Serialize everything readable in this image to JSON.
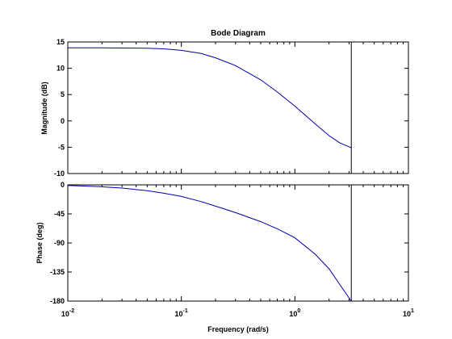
{
  "chart_data": {
    "type": "line",
    "title": "Bode Diagram",
    "xlabel": "Frequency  (rad/s)",
    "x_scale": "log",
    "x_range": [
      0.01,
      10
    ],
    "x_ticks": [
      {
        "base": "10",
        "exp": "-2"
      },
      {
        "base": "10",
        "exp": "-1"
      },
      {
        "base": "10",
        "exp": "0"
      },
      {
        "base": "10",
        "exp": "1"
      }
    ],
    "series_color": "#0000aa",
    "panels": [
      {
        "name": "magnitude",
        "ylabel": "Magnitude (dB)",
        "ylim": [
          -10,
          15
        ],
        "yticks": [
          15,
          10,
          5,
          0,
          -5,
          -10
        ],
        "series": {
          "x": [
            0.01,
            0.02,
            0.03,
            0.05,
            0.07,
            0.1,
            0.15,
            0.2,
            0.3,
            0.5,
            0.7,
            1,
            1.5,
            2,
            2.5,
            3.14
          ],
          "y": [
            13.9,
            13.9,
            13.85,
            13.8,
            13.7,
            13.4,
            12.8,
            12.0,
            10.5,
            7.8,
            5.5,
            2.8,
            -0.5,
            -2.8,
            -4.2,
            -5.1
          ]
        }
      },
      {
        "name": "phase",
        "ylabel": "Phase (deg)",
        "ylim": [
          -180,
          0
        ],
        "yticks": [
          0,
          -45,
          -90,
          -135,
          -180
        ],
        "series": {
          "x": [
            0.01,
            0.02,
            0.03,
            0.05,
            0.07,
            0.1,
            0.15,
            0.2,
            0.3,
            0.5,
            0.7,
            1,
            1.5,
            2,
            2.5,
            3.14
          ],
          "y": [
            -1,
            -3,
            -5,
            -9,
            -13,
            -18,
            -26,
            -33,
            -43,
            -57,
            -68,
            -82,
            -107,
            -130,
            -155,
            -180
          ]
        }
      }
    ],
    "marker_line": {
      "x": 3.14
    }
  }
}
